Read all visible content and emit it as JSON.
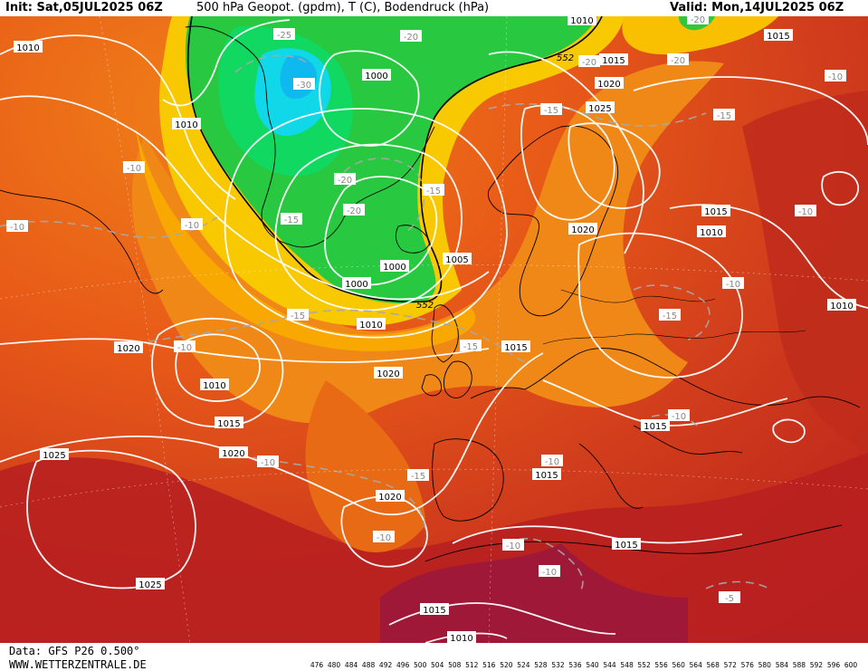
{
  "header": {
    "init_label": "Init: Sat,05JUL2025 06Z",
    "title": "500 hPa Geopot. (gpdm), T (C), Bodendruck (hPa)",
    "valid_label": "Valid: Mon,14JUL2025 06Z"
  },
  "footer": {
    "data_source": "Data: GFS P26 0.500°",
    "website": "WWW.WETTERZENTRALE.DE"
  },
  "colors": {
    "land_outline": "#000000",
    "isobar": "#ffffff",
    "isotherm": "#a8a8a8",
    "geopotential_552": "#000000",
    "scale": [
      "#3d0b57",
      "#5a1a7a",
      "#7b1a94",
      "#9b10b0",
      "#c010c8",
      "#d020d8",
      "#a020f0",
      "#7a20f0",
      "#5030f0",
      "#2040f0",
      "#1060f0",
      "#1090f0",
      "#10b8f0",
      "#10d8f0",
      "#10e8c8",
      "#10e090",
      "#10d860",
      "#20c840",
      "#50d830",
      "#90e020",
      "#d8f000",
      "#f0e800",
      "#f8c800",
      "#f8a800",
      "#f89000",
      "#f07800",
      "#e86010",
      "#e05020",
      "#d84020",
      "#c83020",
      "#b82020",
      "#a81818",
      "#981020",
      "#a01040",
      "#c01070",
      "#e02090"
    ],
    "scale_end_left": "#3d0b57",
    "scale_end_right": "#d020a0"
  },
  "legend": {
    "scale_values": [
      "476",
      "480",
      "484",
      "488",
      "492",
      "496",
      "500",
      "504",
      "508",
      "512",
      "516",
      "520",
      "524",
      "528",
      "532",
      "536",
      "540",
      "544",
      "548",
      "552",
      "556",
      "560",
      "564",
      "568",
      "572",
      "576",
      "580",
      "584",
      "588",
      "592",
      "596",
      "600"
    ]
  },
  "pressure_labels": [
    {
      "id": "p1010-nw",
      "text": "1010"
    },
    {
      "id": "p1010-greenland",
      "text": "1010"
    },
    {
      "id": "p1000-greenland",
      "text": "1000"
    },
    {
      "id": "p1010-top",
      "text": "1010"
    },
    {
      "id": "p1015-scand-n",
      "text": "1015"
    },
    {
      "id": "p1015-ne",
      "text": "1015"
    },
    {
      "id": "p1020-scand",
      "text": "1020"
    },
    {
      "id": "p1025-scand",
      "text": "1025"
    },
    {
      "id": "p1020-norway",
      "text": "1020"
    },
    {
      "id": "p1015-russia",
      "text": "1015"
    },
    {
      "id": "p1010-russia",
      "text": "1010"
    },
    {
      "id": "p1000-iceland",
      "text": "1000"
    },
    {
      "id": "p1000-low",
      "text": "1000"
    },
    {
      "id": "p1005-uk",
      "text": "1005"
    },
    {
      "id": "p1010-atl",
      "text": "1010"
    },
    {
      "id": "p1015-uk",
      "text": "1015"
    },
    {
      "id": "p1020-atl",
      "text": "1020"
    },
    {
      "id": "p1020-w",
      "text": "1020"
    },
    {
      "id": "p1010-lowatl",
      "text": "1010"
    },
    {
      "id": "p1015-atl",
      "text": "1015"
    },
    {
      "id": "p1020-atl2",
      "text": "1020"
    },
    {
      "id": "p1025-sw",
      "text": "1025"
    },
    {
      "id": "p1025-sw2",
      "text": "1025"
    },
    {
      "id": "p1020-iberia",
      "text": "1020"
    },
    {
      "id": "p1015-med",
      "text": "1015"
    },
    {
      "id": "p1015-balkan",
      "text": "1015"
    },
    {
      "id": "p1015-africa",
      "text": "1015"
    },
    {
      "id": "p1015-sahara",
      "text": "1015"
    },
    {
      "id": "p1010-sahara",
      "text": "1010"
    },
    {
      "id": "p1010-e",
      "text": "1010"
    }
  ],
  "temperature_labels": [
    {
      "id": "t-25",
      "text": "-25"
    },
    {
      "id": "t-30",
      "text": "-30"
    },
    {
      "id": "t-20a",
      "text": "-20"
    },
    {
      "id": "t-20b",
      "text": "-20"
    },
    {
      "id": "t-20c",
      "text": "-20"
    },
    {
      "id": "t-20d",
      "text": "-20"
    },
    {
      "id": "t-20e",
      "text": "-20"
    },
    {
      "id": "t-20f",
      "text": "-20"
    },
    {
      "id": "t-15a",
      "text": "-15"
    },
    {
      "id": "t-15b",
      "text": "-15"
    },
    {
      "id": "t-15c",
      "text": "-15"
    },
    {
      "id": "t-15d",
      "text": "-15"
    },
    {
      "id": "t-15e",
      "text": "-15"
    },
    {
      "id": "t-15f",
      "text": "-15"
    },
    {
      "id": "t-15g",
      "text": "-15"
    },
    {
      "id": "t-15h",
      "text": "-15"
    },
    {
      "id": "t-10a",
      "text": "-10"
    },
    {
      "id": "t-10b",
      "text": "-10"
    },
    {
      "id": "t-10c",
      "text": "-10"
    },
    {
      "id": "t-10d",
      "text": "-10"
    },
    {
      "id": "t-10e",
      "text": "-10"
    },
    {
      "id": "t-10f",
      "text": "-10"
    },
    {
      "id": "t-10g",
      "text": "-10"
    },
    {
      "id": "t-10h",
      "text": "-10"
    },
    {
      "id": "t-10i",
      "text": "-10"
    },
    {
      "id": "t-10j",
      "text": "-10"
    },
    {
      "id": "t-10k",
      "text": "-10"
    },
    {
      "id": "t-10l",
      "text": "-10"
    },
    {
      "id": "t-10m",
      "text": "-10"
    },
    {
      "id": "t-5",
      "text": "-5"
    }
  ],
  "geopotential_labels": [
    {
      "id": "g552-n",
      "text": "552"
    },
    {
      "id": "g552-s",
      "text": "552"
    }
  ]
}
